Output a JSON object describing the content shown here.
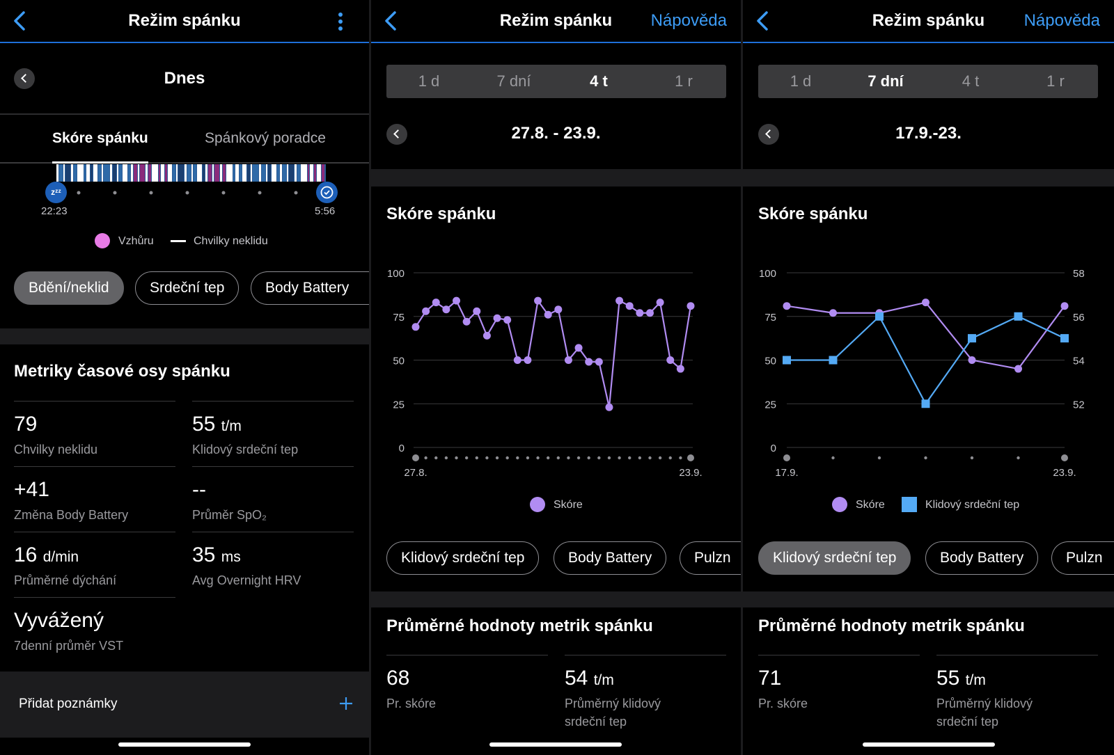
{
  "colors": {
    "accent": "#3d9cf5",
    "score": "#b18cf2",
    "rhr": "#54aaf5",
    "awake": "#e87be6"
  },
  "panel1": {
    "title": "Režim spánku",
    "day_label": "Dnes",
    "tabs": [
      "Skóre spánku",
      "Spánkový poradce"
    ],
    "start_time": "22:23",
    "end_time": "5:56",
    "legend": {
      "awake": "Vzhůru",
      "restless": "Chvilky neklidu"
    },
    "chips": [
      "Bdění/neklid",
      "Srdeční tep",
      "Body Battery"
    ],
    "metrics_title": "Metriky časové osy spánku",
    "metrics": [
      {
        "value": "79",
        "unit": "",
        "label": "Chvilky neklidu"
      },
      {
        "value": "55",
        "unit": "t/m",
        "label": "Klidový srdeční tep"
      },
      {
        "value": "+41",
        "unit": "",
        "label": "Změna Body Battery"
      },
      {
        "value": "--",
        "unit": "",
        "label": "Průměr SpO₂"
      },
      {
        "value": "16",
        "unit": "d/min",
        "label": "Průměrné dýchání"
      },
      {
        "value": "35",
        "unit": "ms",
        "label": "Avg Overnight HRV"
      },
      {
        "value": "Vyvážený",
        "unit": "",
        "label": "7denní průměr VST"
      }
    ],
    "add_notes": "Přidat poznámky"
  },
  "panel2": {
    "title": "Režim spánku",
    "help": "Nápověda",
    "periods": [
      "1 d",
      "7 dní",
      "4 t",
      "1 r"
    ],
    "active_period": "4 t",
    "range": "27.8. - 23.9.",
    "section_title": "Skóre spánku",
    "legend_score": "Skóre",
    "chips": [
      "Klidový srdeční tep",
      "Body Battery",
      "Pulzn"
    ],
    "avg_title": "Průměrné hodnoty metrik spánku",
    "avg": [
      {
        "value": "68",
        "unit": "",
        "label": "Pr. skóre"
      },
      {
        "value": "54",
        "unit": "t/m",
        "label": "Průměrný klidový srdeční tep"
      }
    ]
  },
  "panel3": {
    "title": "Režim spánku",
    "help": "Nápověda",
    "periods": [
      "1 d",
      "7 dní",
      "4 t",
      "1 r"
    ],
    "active_period": "7 dní",
    "range": "17.9.-23.",
    "section_title": "Skóre spánku",
    "legend_score": "Skóre",
    "legend_rhr": "Klidový srdeční tep",
    "chips": [
      "Klidový srdeční tep",
      "Body Battery",
      "Pulzn"
    ],
    "avg_title": "Průměrné hodnoty metrik spánku",
    "avg": [
      {
        "value": "71",
        "unit": "",
        "label": "Pr. skóre"
      },
      {
        "value": "55",
        "unit": "t/m",
        "label": "Průměrný klidový srdeční tep"
      }
    ]
  },
  "chart_data": [
    {
      "type": "line",
      "x_start_label": "27.8.",
      "x_end_label": "23.9.",
      "y_ticks": [
        0,
        25,
        50,
        75,
        100
      ],
      "ylim": [
        0,
        100
      ],
      "series": [
        {
          "name": "Skóre",
          "values": [
            69,
            78,
            83,
            79,
            84,
            72,
            78,
            64,
            74,
            73,
            50,
            50,
            84,
            76,
            79,
            50,
            57,
            49,
            49,
            23,
            84,
            81,
            77,
            77,
            83,
            50,
            45,
            81
          ]
        }
      ],
      "legend_position": "bottom-center"
    },
    {
      "type": "line",
      "x_start_label": "17.9.",
      "x_end_label": "23.9.",
      "y_ticks": [
        0,
        25,
        50,
        75,
        100
      ],
      "ylim": [
        0,
        100
      ],
      "y2_ticks": [
        52,
        54,
        56,
        58
      ],
      "y2lim": [
        50,
        58
      ],
      "series": [
        {
          "name": "Skóre",
          "axis": "left",
          "values": [
            81,
            77,
            77,
            83,
            50,
            45,
            81
          ]
        },
        {
          "name": "Klidový srdeční tep",
          "axis": "right",
          "values": [
            54,
            54,
            56,
            52,
            55,
            56,
            55
          ]
        }
      ],
      "legend_position": "bottom-center"
    }
  ]
}
